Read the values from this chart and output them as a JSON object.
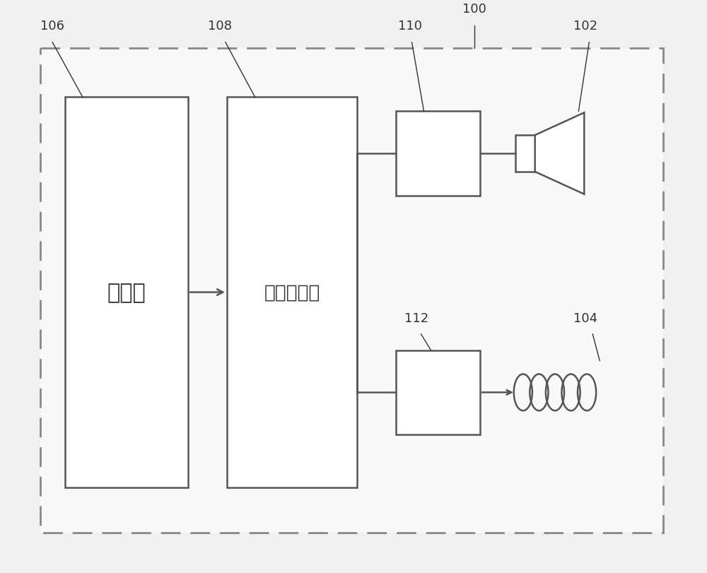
{
  "bg_color": "#f0f0f0",
  "inner_bg": "#f8f8f8",
  "box_color": "#ffffff",
  "box_edge_color": "#555555",
  "line_color": "#555555",
  "text_color": "#333333",
  "processor_label": "处理器",
  "signal_proc_label": "信号处理器",
  "label_106": "106",
  "label_108": "108",
  "label_110": "110",
  "label_112": "112",
  "label_100": "100",
  "label_102": "102",
  "label_104": "104",
  "font_size_label": 13,
  "font_size_box_main": 20,
  "font_size_box_signal": 18
}
